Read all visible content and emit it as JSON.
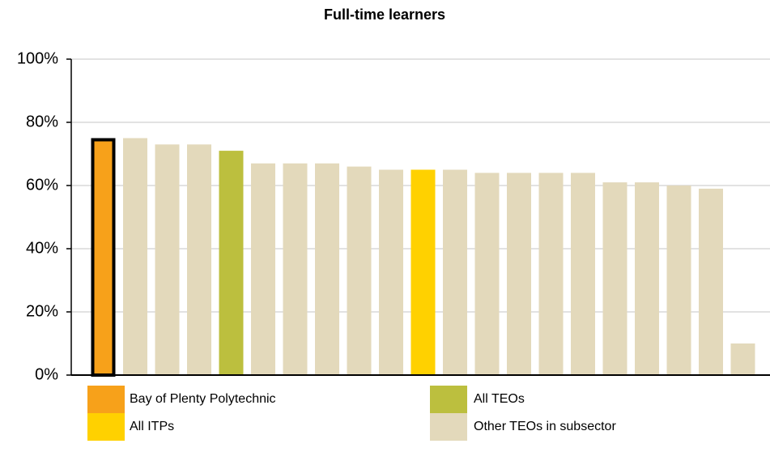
{
  "chart_data": {
    "type": "bar",
    "title": "Full-time learners",
    "categories": [
      null,
      null,
      null,
      null,
      null,
      null,
      null,
      null,
      null,
      null,
      null,
      null,
      null,
      null,
      null,
      null,
      null,
      null,
      null,
      null,
      null
    ],
    "values": [
      75,
      75,
      73,
      73,
      71,
      67,
      67,
      67,
      66,
      65,
      65,
      65,
      64,
      64,
      64,
      64,
      61,
      61,
      60,
      59,
      10
    ],
    "colors": [
      "#f7a11a",
      "#e3d9bb",
      "#e3d9bb",
      "#e3d9bb",
      "#bcbf3e",
      "#e3d9bb",
      "#e3d9bb",
      "#e3d9bb",
      "#e3d9bb",
      "#e3d9bb",
      "#ffd100",
      "#e3d9bb",
      "#e3d9bb",
      "#e3d9bb",
      "#e3d9bb",
      "#e3d9bb",
      "#e3d9bb",
      "#e3d9bb",
      "#e3d9bb",
      "#e3d9bb",
      "#e3d9bb"
    ],
    "outline": 0,
    "ylim": [
      0,
      100
    ],
    "yticks": [
      {
        "value": 0,
        "label": "0%"
      },
      {
        "value": 20,
        "label": "20%"
      },
      {
        "value": 40,
        "label": "40%"
      },
      {
        "value": 60,
        "label": "60%"
      },
      {
        "value": 80,
        "label": "80%"
      },
      {
        "value": 100,
        "label": "100%"
      }
    ],
    "grid": true,
    "legend": [
      {
        "name": "Bay of Plenty Polytechnic",
        "color": "#f7a11a"
      },
      {
        "name": "All TEOs",
        "color": "#bcbf3e"
      },
      {
        "name": "All ITPs",
        "color": "#ffd100"
      },
      {
        "name": "Other TEOs in subsector",
        "color": "#e3d9bb"
      }
    ]
  }
}
